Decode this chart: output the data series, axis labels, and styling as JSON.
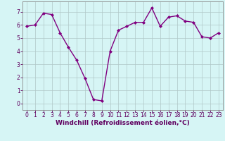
{
  "x": [
    0,
    1,
    2,
    3,
    4,
    5,
    6,
    7,
    8,
    9,
    10,
    11,
    12,
    13,
    14,
    15,
    16,
    17,
    18,
    19,
    20,
    21,
    22,
    23
  ],
  "y": [
    5.9,
    6.0,
    6.9,
    6.8,
    5.4,
    4.3,
    3.3,
    1.9,
    0.3,
    0.2,
    4.0,
    5.6,
    5.9,
    6.2,
    6.2,
    7.3,
    5.9,
    6.6,
    6.7,
    6.3,
    6.2,
    5.1,
    5.0,
    5.4
  ],
  "line_color": "#800080",
  "marker": "D",
  "marker_size": 2.0,
  "bg_color": "#d6f5f5",
  "grid_color": "#b0c8c8",
  "xlabel": "Windchill (Refroidissement éolien,°C)",
  "ylim": [
    -0.5,
    7.8
  ],
  "xlim": [
    -0.5,
    23.5
  ],
  "yticks": [
    0,
    1,
    2,
    3,
    4,
    5,
    6,
    7
  ],
  "xticks": [
    0,
    1,
    2,
    3,
    4,
    5,
    6,
    7,
    8,
    9,
    10,
    11,
    12,
    13,
    14,
    15,
    16,
    17,
    18,
    19,
    20,
    21,
    22,
    23
  ],
  "tick_fontsize": 5.5,
  "xlabel_fontsize": 6.5,
  "line_width": 1.0,
  "spine_color": "#888888"
}
